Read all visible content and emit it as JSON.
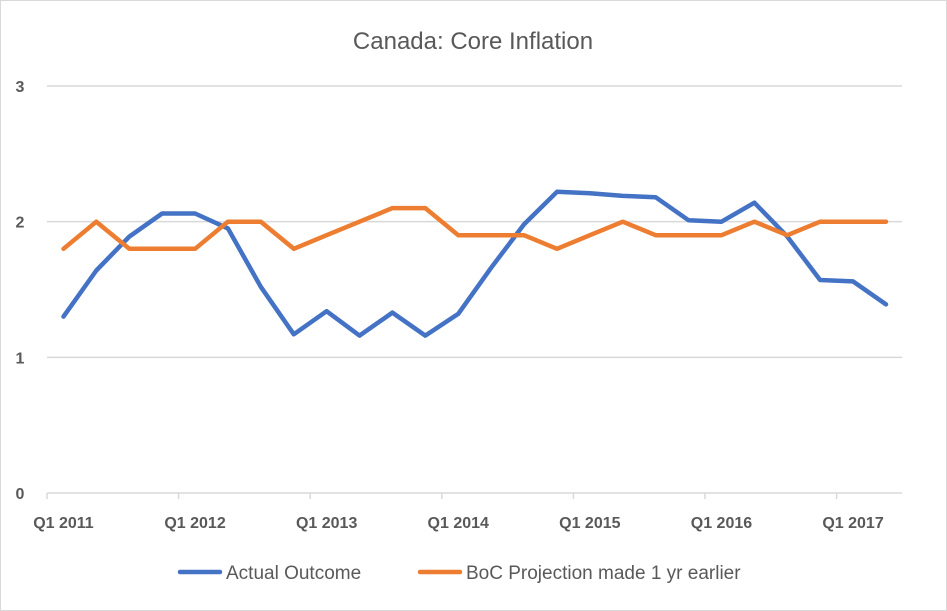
{
  "chart_data": {
    "type": "line",
    "title": "Canada: Core Inflation",
    "xlabel": "",
    "ylabel": "",
    "ylim": [
      0,
      3
    ],
    "yticks": [
      "0",
      "1",
      "2",
      "3"
    ],
    "grid": true,
    "legend_position": "bottom",
    "x": [
      "Q1 2011",
      "Q2 2011",
      "Q3 2011",
      "Q4 2011",
      "Q1 2012",
      "Q2 2012",
      "Q3 2012",
      "Q4 2012",
      "Q1 2013",
      "Q2 2013",
      "Q3 2013",
      "Q4 2013",
      "Q1 2014",
      "Q2 2014",
      "Q3 2014",
      "Q4 2014",
      "Q1 2015",
      "Q2 2015",
      "Q3 2015",
      "Q4 2015",
      "Q1 2016",
      "Q2 2016",
      "Q3 2016",
      "Q4 2016",
      "Q1 2017",
      "Q2 2017"
    ],
    "xtick_labels": [
      "Q1 2011",
      "Q1 2012",
      "Q1 2013",
      "Q1 2014",
      "Q1 2015",
      "Q1 2016",
      "Q1 2017"
    ],
    "series": [
      {
        "name": "Actual Outcome",
        "color": "#4472C4",
        "values": [
          1.3,
          1.64,
          1.89,
          2.06,
          2.06,
          1.95,
          1.52,
          1.17,
          1.34,
          1.16,
          1.33,
          1.16,
          1.32,
          1.66,
          1.98,
          2.22,
          2.21,
          2.19,
          2.18,
          2.01,
          2.0,
          2.14,
          1.89,
          1.57,
          1.56,
          1.39
        ]
      },
      {
        "name": "BoC Projection made 1 yr earlier",
        "color": "#ED7D31",
        "values": [
          1.8,
          2.0,
          1.8,
          1.8,
          1.8,
          2.0,
          2.0,
          1.8,
          1.9,
          2.0,
          2.1,
          2.1,
          1.9,
          1.9,
          1.9,
          1.8,
          1.9,
          2.0,
          1.9,
          1.9,
          1.9,
          2.0,
          1.9,
          2.0,
          2.0,
          2.0
        ]
      }
    ]
  }
}
